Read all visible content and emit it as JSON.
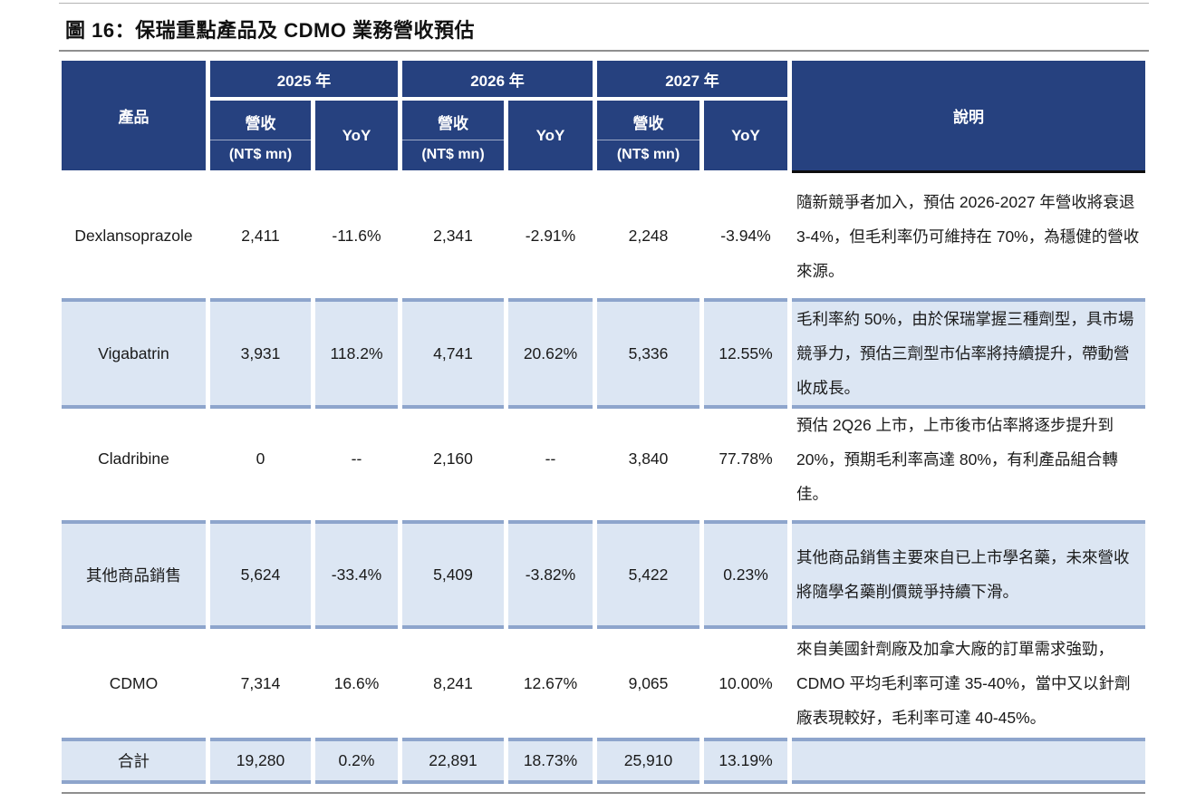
{
  "title": "圖 16：保瑞重點產品及 CDMO 業務營收預估",
  "table": {
    "col_product": "產品",
    "col_note": "說明",
    "years": [
      "2025 年",
      "2026 年",
      "2027 年"
    ],
    "sub": {
      "revenue": "營收",
      "unit": "(NT$ mn)",
      "yoy": "YoY"
    },
    "rows": [
      {
        "product": "Dexlansoprazole",
        "values": [
          "2,411",
          "-11.6%",
          "2,341",
          "-2.91%",
          "2,248",
          "-3.94%"
        ],
        "note": "隨新競爭者加入，預估 2026-2027 年營收將衰退 3-4%，但毛利率仍可維持在 70%，為穩健的營收來源。"
      },
      {
        "product": "Vigabatrin",
        "values": [
          "3,931",
          "118.2%",
          "4,741",
          "20.62%",
          "5,336",
          "12.55%"
        ],
        "note": "毛利率約 50%，由於保瑞掌握三種劑型，具市場競爭力，預估三劑型市佔率將持續提升，帶動營收成長。"
      },
      {
        "product": "Cladribine",
        "values": [
          "0",
          "--",
          "2,160",
          "--",
          "3,840",
          "77.78%"
        ],
        "note": "預估 2Q26 上市，上市後市佔率將逐步提升到 20%，預期毛利率高達 80%，有利產品組合轉佳。"
      },
      {
        "product": "其他商品銷售",
        "values": [
          "5,624",
          "-33.4%",
          "5,409",
          "-3.82%",
          "5,422",
          "0.23%"
        ],
        "note": "其他商品銷售主要來自已上市學名藥，未來營收將隨學名藥削價競爭持續下滑。"
      },
      {
        "product": "CDMO",
        "values": [
          "7,314",
          "16.6%",
          "8,241",
          "12.67%",
          "9,065",
          "10.00%"
        ],
        "note": "來自美國針劑廠及加拿大廠的訂單需求強勁，CDMO 平均毛利率可達 35-40%，當中又以針劑廠表現較好，毛利率可達 40-45%。"
      },
      {
        "product": "合計",
        "values": [
          "19,280",
          "0.2%",
          "22,891",
          "18.73%",
          "25,910",
          "13.19%"
        ],
        "note": ""
      }
    ]
  },
  "colors": {
    "header_navy": "#26417f",
    "shaded_row_fill": "#dce6f3",
    "shaded_row_border": "#8ea5cc",
    "note_header_underline": "#0d0d0d",
    "rule_gray": "#8f8f8f",
    "text": "#1a1a1a"
  }
}
